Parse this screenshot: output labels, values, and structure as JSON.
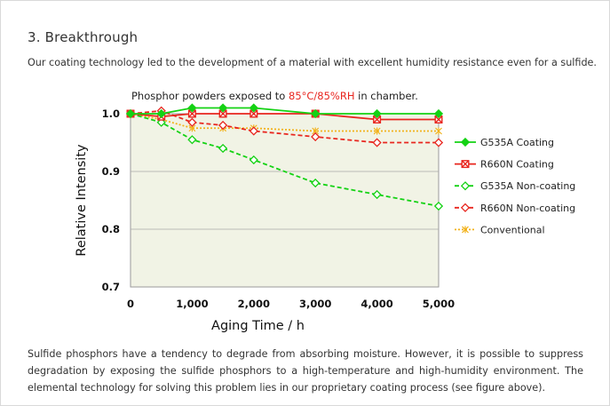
{
  "section": {
    "heading": "3. Breakthrough",
    "intro": "Our coating technology led to the development of a material with excellent humidity resistance even for a sulfide.",
    "footer": "Sulfide phosphors have a tendency to degrade from absorbing moisture. However, it is possible to suppress degradation by exposing the sulfide phosphors to a high-temperature and high-humidity environment. The elemental technology for solving this problem lies in our proprietary coating process (see figure above)."
  },
  "chart_data": {
    "type": "line",
    "title_before": "Phosphor powders exposed to ",
    "title_highlight": "85°C/85%RH",
    "title_after": " in chamber.",
    "xlabel": "Aging Time / h",
    "ylabel": "Relative Intensity",
    "xlim": [
      0,
      5000
    ],
    "ylim": [
      0.7,
      1.0
    ],
    "x_ticks": [
      0,
      1000,
      2000,
      3000,
      4000,
      5000
    ],
    "x_tick_labels": [
      "0",
      "1,000",
      "2,000",
      "3,000",
      "4,000",
      "5,000"
    ],
    "y_ticks": [
      0.7,
      0.8,
      0.9,
      1.0
    ],
    "y_tick_labels": [
      "0.7",
      "0.8",
      "0.9",
      "1.0"
    ],
    "grid": "horizontal",
    "legend_position": "right",
    "plot_background": "#f1f3e5",
    "series": [
      {
        "name": "G535A Coating",
        "color": "#14d214",
        "dash": "solid",
        "marker": "filled-diamond",
        "x": [
          0,
          500,
          1000,
          1500,
          2000,
          3000,
          4000,
          5000
        ],
        "values": [
          1.0,
          1.0,
          1.01,
          1.01,
          1.01,
          1.0,
          1.0,
          1.0
        ]
      },
      {
        "name": "R660N Coating",
        "color": "#e8261f",
        "dash": "solid",
        "marker": "box-x",
        "x": [
          0,
          500,
          1000,
          1500,
          2000,
          3000,
          4000,
          5000
        ],
        "values": [
          1.0,
          0.995,
          1.0,
          1.0,
          1.0,
          1.0,
          0.99,
          0.99
        ]
      },
      {
        "name": "G535A Non-coating",
        "color": "#14d214",
        "dash": "dashed",
        "marker": "open-diamond",
        "x": [
          0,
          500,
          1000,
          1500,
          2000,
          3000,
          4000,
          5000
        ],
        "values": [
          1.0,
          0.985,
          0.955,
          0.94,
          0.92,
          0.88,
          0.86,
          0.84
        ]
      },
      {
        "name": "R660N Non-coating",
        "color": "#e8261f",
        "dash": "dashed",
        "marker": "open-diamond",
        "x": [
          0,
          500,
          1000,
          1500,
          2000,
          3000,
          4000,
          5000
        ],
        "values": [
          1.0,
          1.005,
          0.985,
          0.98,
          0.97,
          0.96,
          0.95,
          0.95
        ]
      },
      {
        "name": "Conventional",
        "color": "#f2b21b",
        "dash": "dotted",
        "marker": "asterisk",
        "x": [
          0,
          500,
          1000,
          1500,
          2000,
          3000,
          4000,
          5000
        ],
        "values": [
          1.0,
          0.99,
          0.975,
          0.975,
          0.975,
          0.97,
          0.97,
          0.97
        ]
      }
    ]
  }
}
